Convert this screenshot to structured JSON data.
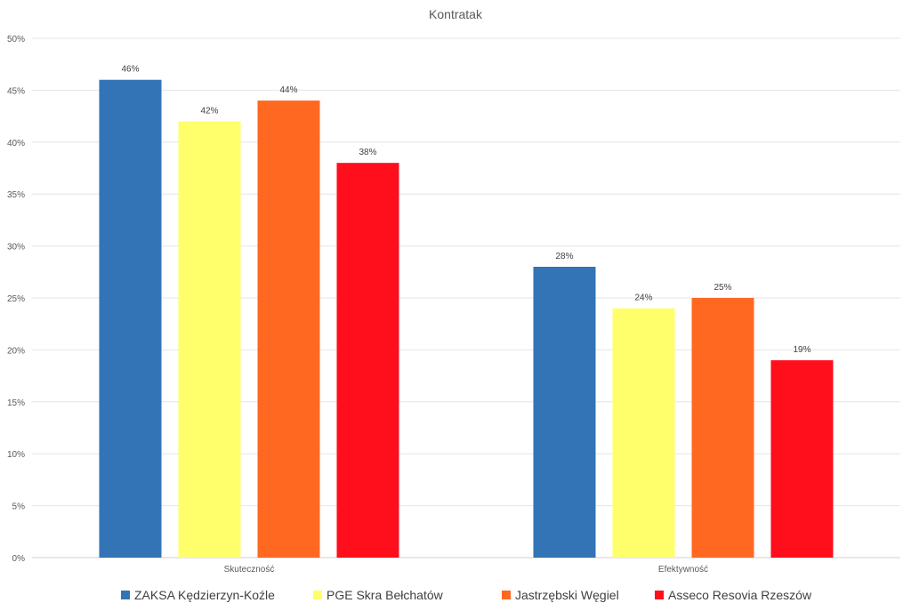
{
  "chart_data": {
    "type": "bar",
    "title": "Kontratak",
    "categories": [
      "Skuteczność",
      "Efektywność"
    ],
    "series": [
      {
        "name": "ZAKSA Kędzierzyn-Koźle",
        "values": [
          46,
          28
        ],
        "color": "#3274B5"
      },
      {
        "name": "PGE Skra Bełchatów",
        "values": [
          42,
          24
        ],
        "color": "#FFFF6B"
      },
      {
        "name": "Jastrzębski Węgiel",
        "values": [
          44,
          25
        ],
        "color": "#FF6820"
      },
      {
        "name": "Asseco Resovia Rzeszów",
        "values": [
          38,
          19
        ],
        "color": "#FF0E1C"
      }
    ],
    "y_ticks": [
      "0%",
      "5%",
      "10%",
      "15%",
      "20%",
      "25%",
      "30%",
      "35%",
      "40%",
      "45%",
      "50%"
    ],
    "data_labels": [
      [
        "46%",
        "28%"
      ],
      [
        "42%",
        "24%"
      ],
      [
        "44%",
        "25%"
      ],
      [
        "38%",
        "19%"
      ]
    ],
    "ylim": [
      0,
      50
    ],
    "grid": true,
    "legend_position": "bottom"
  }
}
